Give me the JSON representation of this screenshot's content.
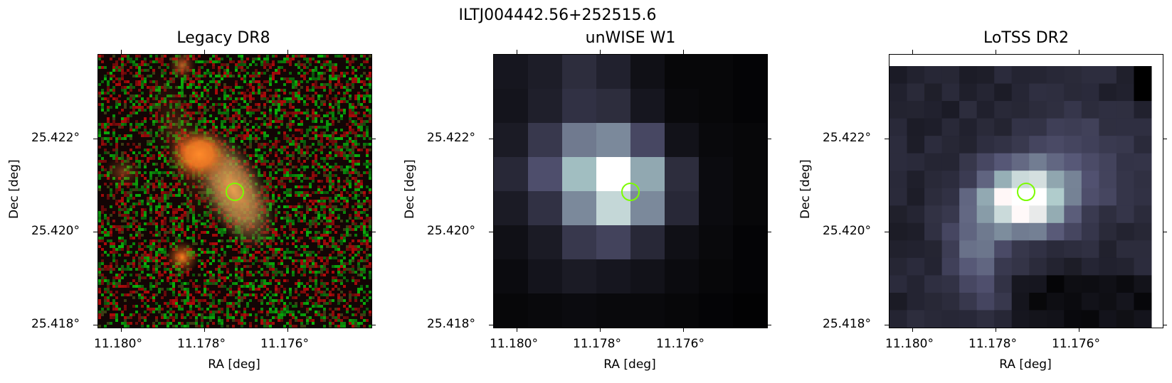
{
  "figure": {
    "suptitle": "ILTJ004442.56+252515.6"
  },
  "panels": [
    {
      "title": "Legacy DR8",
      "xlabel": "RA [deg]",
      "ylabel": "Dec [deg]",
      "xticks": [
        "11.180°",
        "11.178°",
        "11.176°"
      ],
      "yticks": [
        "25.422°",
        "25.420°",
        "25.418°"
      ],
      "image": "optical RGB cutout: noisy red/green background, orange galaxy upper-left, elongated yellow-orange galaxy at center, small orange source lower-left"
    },
    {
      "title": "unWISE W1",
      "xlabel": "RA [deg]",
      "ylabel": "Dec [deg]",
      "xticks": [
        "11.180°",
        "11.178°",
        "11.176°"
      ],
      "yticks": [
        "25.422°",
        "25.420°",
        "25.418°"
      ],
      "image": "coarse-pixel grayscale (bone colormap) infrared cutout with bright source at center"
    },
    {
      "title": "LoTSS DR2",
      "xlabel": "RA [deg]",
      "ylabel": "Dec [deg]",
      "xticks": [
        "11.180°",
        "11.178°",
        "11.176°"
      ],
      "yticks": [
        "25.422°",
        "25.420°",
        "25.418°"
      ],
      "image": "coarse-pixel grayscale (bone colormap) radio cutout, diffuse emission peaking near center"
    }
  ],
  "marker": {
    "shape": "circle",
    "color": "#7cfc00"
  },
  "colors": {
    "marker": "#7cfc00",
    "axes": "#000000"
  }
}
